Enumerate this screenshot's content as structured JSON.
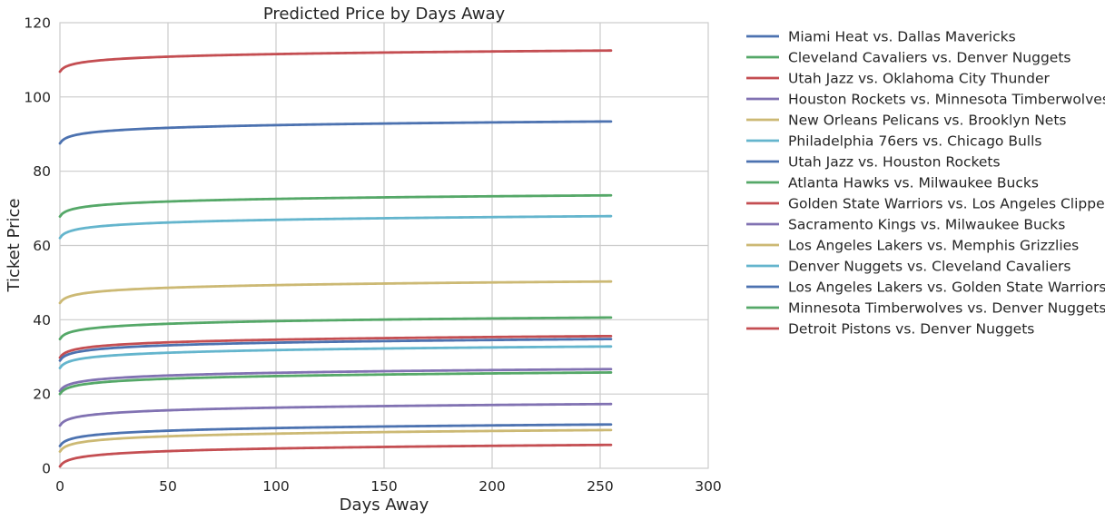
{
  "chart_data": {
    "type": "line",
    "title": "Predicted Price by Days Away",
    "xlabel": "Days Away",
    "ylabel": "Ticket Price",
    "xlim": [
      0,
      300
    ],
    "ylim": [
      0,
      120
    ],
    "xticks": [
      0,
      50,
      100,
      150,
      200,
      250,
      300
    ],
    "yticks": [
      0,
      20,
      40,
      60,
      80,
      100,
      120
    ],
    "grid": true,
    "legend_position": "outside-right",
    "x_range": [
      0,
      255
    ],
    "curve": "logarithmic",
    "series": [
      {
        "name": "Miami Heat vs. Dallas Mavericks",
        "color": "#4c72b0",
        "start": 87.5,
        "end": 93.4
      },
      {
        "name": "Cleveland Cavaliers vs. Denver Nuggets",
        "color": "#55a868",
        "start": 67.8,
        "end": 73.5
      },
      {
        "name": "Utah Jazz vs. Oklahoma City Thunder",
        "color": "#c44e52",
        "start": 106.8,
        "end": 112.5
      },
      {
        "name": "Houston Rockets vs. Minnesota Timberwolves",
        "color": "#8172b2",
        "start": 11.5,
        "end": 17.3
      },
      {
        "name": "New Orleans Pelicans vs. Brooklyn Nets",
        "color": "#ccb974",
        "start": 44.5,
        "end": 50.3
      },
      {
        "name": "Philadelphia 76ers vs. Chicago Bulls",
        "color": "#64b5cd",
        "start": 62.0,
        "end": 67.9
      },
      {
        "name": "Utah Jazz vs. Houston Rockets",
        "color": "#4c72b0",
        "start": 6.0,
        "end": 11.8
      },
      {
        "name": "Atlanta Hawks vs. Milwaukee Bucks",
        "color": "#55a868",
        "start": 34.8,
        "end": 40.6
      },
      {
        "name": "Golden State Warriors vs. Los Angeles Clippers",
        "color": "#c44e52",
        "start": 29.8,
        "end": 35.6
      },
      {
        "name": "Sacramento Kings vs. Milwaukee Bucks",
        "color": "#8172b2",
        "start": 20.8,
        "end": 26.7
      },
      {
        "name": "Los Angeles Lakers vs. Memphis Grizzlies",
        "color": "#ccb974",
        "start": 4.5,
        "end": 10.3
      },
      {
        "name": "Denver Nuggets vs. Cleveland Cavaliers",
        "color": "#64b5cd",
        "start": 27.0,
        "end": 32.8
      },
      {
        "name": "Los Angeles Lakers vs. Golden State Warriors",
        "color": "#4c72b0",
        "start": 29.0,
        "end": 34.8
      },
      {
        "name": "Minnesota Timberwolves vs. Denver Nuggets",
        "color": "#55a868",
        "start": 20.0,
        "end": 25.8
      },
      {
        "name": "Detroit Pistons vs. Denver Nuggets",
        "color": "#c44e52",
        "start": 0.5,
        "end": 6.3
      }
    ]
  }
}
